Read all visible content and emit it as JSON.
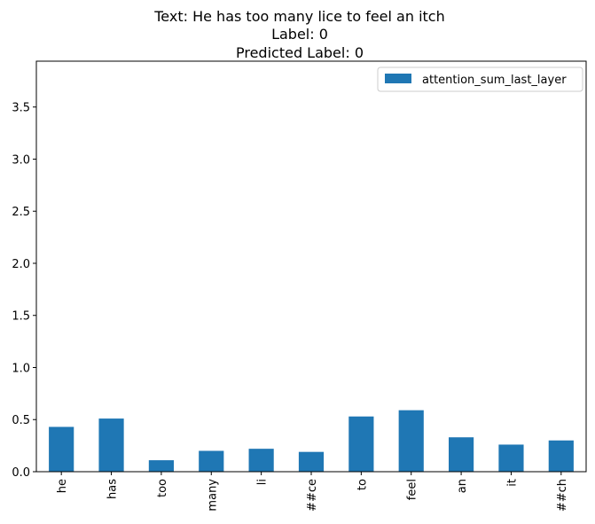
{
  "chart_data": {
    "type": "bar",
    "title_lines": [
      "Text: He has too many lice to feel an itch",
      "Label: 0",
      "Predicted Label: 0"
    ],
    "categories": [
      "he",
      "has",
      "too",
      "many",
      "li",
      "##ce",
      "to",
      "feel",
      "an",
      "it",
      "##ch"
    ],
    "series": [
      {
        "name": "attention_sum_last_layer",
        "color": "#1f77b4",
        "values": [
          0.43,
          0.51,
          0.11,
          0.2,
          0.22,
          0.19,
          0.53,
          0.59,
          0.33,
          0.26,
          0.3
        ]
      }
    ],
    "yticks": [
      "0.0",
      "0.5",
      "1.0",
      "1.5",
      "2.0",
      "2.5",
      "3.0",
      "3.5"
    ],
    "ylim": [
      0,
      3.94
    ],
    "legend_placement": "top-right",
    "grid": false
  }
}
